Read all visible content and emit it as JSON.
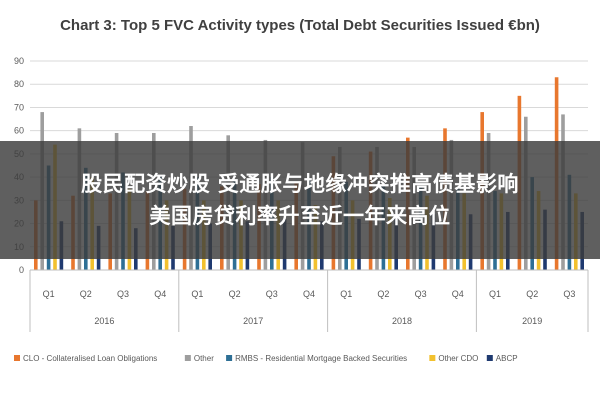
{
  "overlay": {
    "line1": "股民配资炒股 受通胀与地缘冲突推高债基影响",
    "line2": "美国房贷利率升至近一年来高位"
  },
  "chart_data": {
    "type": "bar",
    "title": "Chart 3: Top 5 FVC Activity types (Total Debt Securities Issued €bn)",
    "categories": [
      "Q1",
      "Q2",
      "Q3",
      "Q4",
      "Q1",
      "Q2",
      "Q3",
      "Q4",
      "Q1",
      "Q2",
      "Q3",
      "Q4",
      "Q1",
      "Q2",
      "Q3"
    ],
    "groups": [
      {
        "label": "2016",
        "count": 4
      },
      {
        "label": "2017",
        "count": 4
      },
      {
        "label": "2018",
        "count": 4
      },
      {
        "label": "2019",
        "count": 3
      }
    ],
    "ylim": [
      0,
      90
    ],
    "yticks": [
      0,
      10,
      20,
      30,
      40,
      50,
      60,
      70,
      80,
      90
    ],
    "grid": true,
    "legend_position": "bottom",
    "series": [
      {
        "name": "CLO - Collateralised Loan Obligations",
        "color": "#e8772e",
        "values": [
          30,
          32,
          33,
          34,
          35,
          36,
          37,
          38,
          49,
          51,
          57,
          61,
          68,
          75,
          83
        ]
      },
      {
        "name": "Other",
        "color": "#9e9e9e",
        "values": [
          68,
          61,
          59,
          59,
          62,
          58,
          56,
          55,
          53,
          53,
          53,
          56,
          59,
          66,
          67
        ]
      },
      {
        "name": "RMBS - Residential Mortgage Backed Securities",
        "color": "#2e6f95",
        "values": [
          45,
          44,
          42,
          41,
          40,
          39,
          40,
          39,
          38,
          37,
          36,
          35,
          34,
          40,
          41
        ]
      },
      {
        "name": "Other CDO",
        "color": "#f2c12e",
        "values": [
          54,
          40,
          35,
          30,
          30,
          30,
          30,
          28,
          30,
          31,
          32,
          33,
          33,
          34,
          33
        ]
      },
      {
        "name": "ABCP",
        "color": "#1f3a70",
        "values": [
          21,
          19,
          18,
          19,
          20,
          21,
          22,
          21,
          22,
          23,
          24,
          24,
          25,
          26,
          25
        ]
      }
    ]
  }
}
